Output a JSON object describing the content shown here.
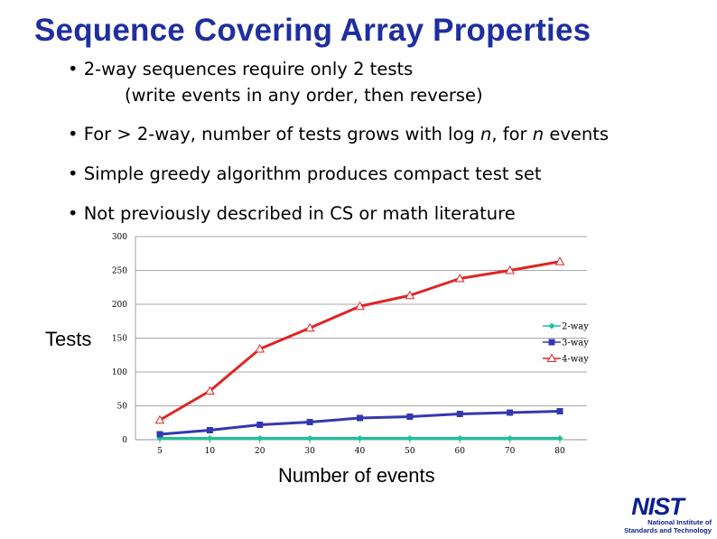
{
  "title": "Sequence Covering Array Properties",
  "bullets": [
    {
      "text": "• 2-way sequences require only 2 tests",
      "sub": "(write events in any order, then  reverse)"
    },
    {
      "pre": "• For > 2-way, number of tests grows with log ",
      "var1": "n",
      "mid": ", for ",
      "var2": "n",
      "post": " events"
    },
    {
      "text": "• Simple greedy algorithm produces compact test set"
    },
    {
      "text": "• Not previously described in CS or math literature"
    }
  ],
  "chart_data": {
    "type": "line",
    "x": [
      5,
      10,
      20,
      30,
      40,
      50,
      60,
      70,
      80
    ],
    "series": [
      {
        "name": "2-way",
        "values": [
          2,
          2,
          2,
          2,
          2,
          2,
          2,
          2,
          2
        ],
        "color": "#19c39a",
        "marker": "diamond"
      },
      {
        "name": "3-way",
        "values": [
          8,
          14,
          22,
          26,
          32,
          34,
          38,
          40,
          42
        ],
        "color": "#3338b0",
        "marker": "square"
      },
      {
        "name": "4-way",
        "values": [
          29,
          72,
          134,
          165,
          197,
          213,
          238,
          250,
          263
        ],
        "color": "#e02424",
        "marker": "triangle"
      }
    ],
    "ylim": [
      0,
      300
    ],
    "yticks": [
      0,
      50,
      100,
      150,
      200,
      250,
      300
    ],
    "xticks": [
      "5",
      "10",
      "20",
      "30",
      "40",
      "50",
      "60",
      "70",
      "80"
    ],
    "xlabel": "Number of events",
    "ylabel": "Tests",
    "grid": "horizontal",
    "legend": "right"
  },
  "logo": {
    "mark": "NIST",
    "line1": "National Institute of",
    "line2": "Standards and Technology"
  }
}
